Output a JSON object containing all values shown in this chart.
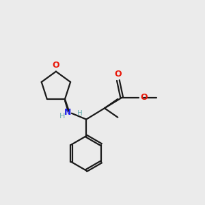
{
  "bg_color": "#ebebeb",
  "bond_color": "#1a1a1a",
  "O_color": "#e8180a",
  "N_color": "#2020e8",
  "H_color": "#6aafaf",
  "line_width": 1.6,
  "figsize": [
    3.0,
    3.0
  ],
  "dpi": 100,
  "xlim": [
    0,
    10
  ],
  "ylim": [
    0,
    10
  ]
}
